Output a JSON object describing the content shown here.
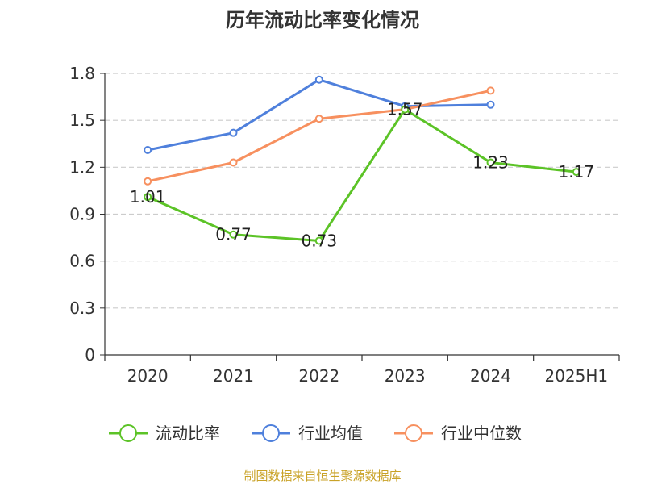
{
  "chart_data": {
    "type": "line",
    "title": "历年流动比率变化情况",
    "categories": [
      "2020",
      "2021",
      "2022",
      "2023",
      "2024",
      "2025H1"
    ],
    "ylim": [
      0,
      1.8
    ],
    "yticks": [
      "0",
      "0.3",
      "0.6",
      "0.9",
      "1.2",
      "1.5",
      "1.8"
    ],
    "grid": true,
    "legend_position": "bottom",
    "series": [
      {
        "name": "流动比率",
        "color": "#5cc327",
        "values": [
          1.01,
          0.77,
          0.73,
          1.57,
          1.23,
          1.17
        ],
        "labels": [
          "1.01",
          "0.77",
          "0.73",
          "1.57",
          "1.23",
          "1.17"
        ]
      },
      {
        "name": "行业均值",
        "color": "#4f80dc",
        "values": [
          1.31,
          1.42,
          1.76,
          1.59,
          1.6,
          null
        ]
      },
      {
        "name": "行业中位数",
        "color": "#f7905f",
        "values": [
          1.11,
          1.23,
          1.51,
          1.57,
          1.69,
          null
        ]
      }
    ],
    "source": "制图数据来自恒生聚源数据库"
  }
}
